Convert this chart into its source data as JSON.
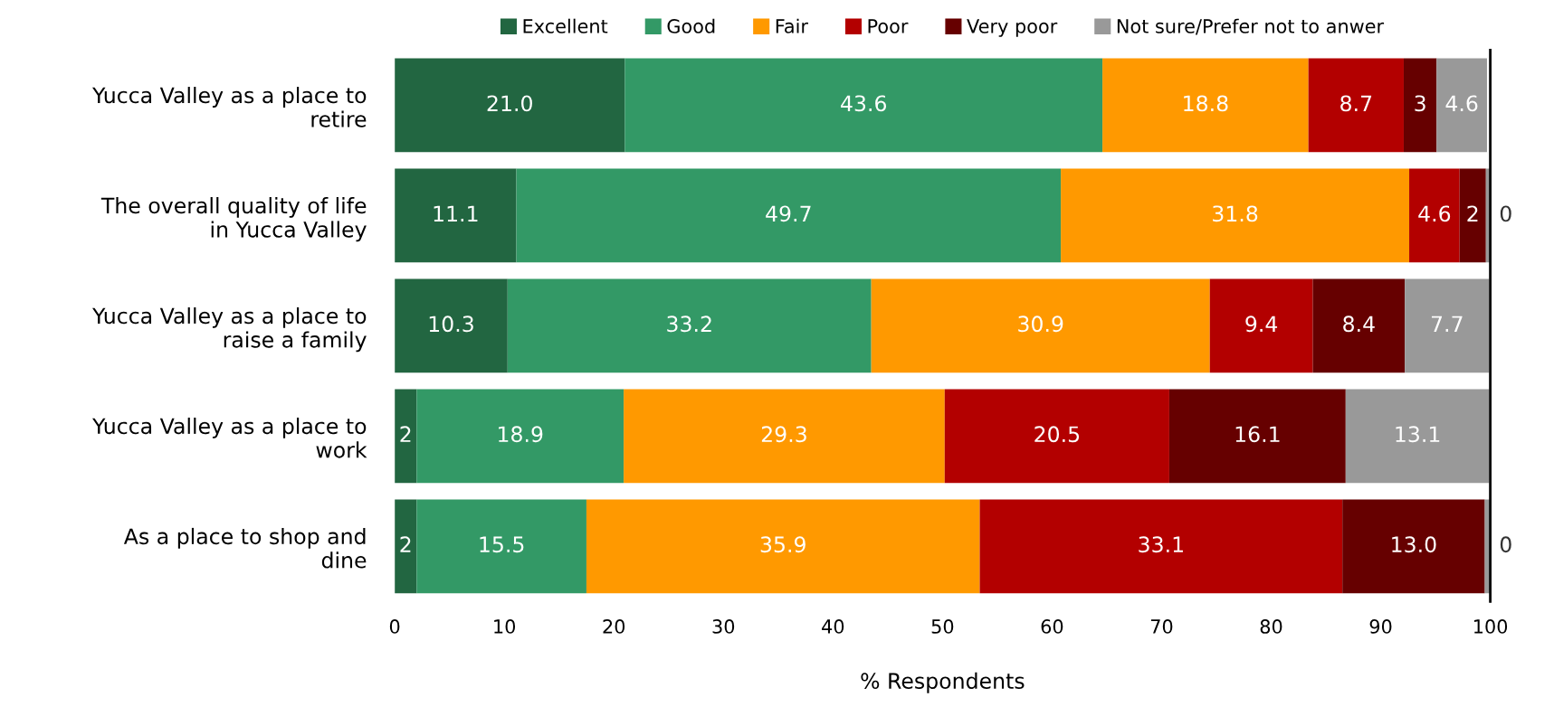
{
  "chart_data": {
    "type": "bar",
    "orientation": "horizontal",
    "stacked": true,
    "xlabel": "% Respondents",
    "categories": [
      "Yucca Valley as a place to\nretire",
      "The overall quality of life\nin Yucca Valley",
      "Yucca Valley as a place to\nraise a family",
      "Yucca Valley as a place to\nwork",
      "As a place to shop and\ndine"
    ],
    "series": [
      {
        "name": "Excellent",
        "color": "#226641",
        "values": [
          21.0,
          11.1,
          10.3,
          2,
          2
        ],
        "value_labels": [
          "21.0",
          "11.1",
          "10.3",
          "2",
          "2"
        ]
      },
      {
        "name": "Good",
        "color": "#339966",
        "values": [
          43.6,
          49.7,
          33.2,
          18.9,
          15.5
        ],
        "value_labels": [
          "43.6",
          "49.7",
          "33.2",
          "18.9",
          "15.5"
        ]
      },
      {
        "name": "Fair",
        "color": "#ff9900",
        "values": [
          18.8,
          31.8,
          30.9,
          29.3,
          35.9
        ],
        "value_labels": [
          "18.8",
          "31.8",
          "30.9",
          "29.3",
          "35.9"
        ]
      },
      {
        "name": "Poor",
        "color": "#b30000",
        "values": [
          8.7,
          4.6,
          9.4,
          20.5,
          33.1
        ],
        "value_labels": [
          "8.7",
          "4.6",
          "9.4",
          "20.5",
          "33.1"
        ]
      },
      {
        "name": "Very poor",
        "color": "#660000",
        "values": [
          3,
          2.4,
          8.4,
          16.1,
          13.0
        ],
        "value_labels": [
          "3",
          "2",
          "8.4",
          "16.1",
          "13.0"
        ]
      },
      {
        "name": "Not sure/Prefer not to anwer",
        "color": "#999999",
        "values": [
          4.6,
          0.4,
          7.7,
          13.1,
          0.5
        ],
        "value_labels": [
          "4.6",
          "0",
          "7.7",
          "13.1",
          "0"
        ]
      }
    ],
    "xlim": [
      0,
      100
    ],
    "xticks": [
      0,
      10,
      20,
      30,
      40,
      50,
      60,
      70,
      80,
      90,
      100
    ],
    "grid": false,
    "legend": "top"
  }
}
